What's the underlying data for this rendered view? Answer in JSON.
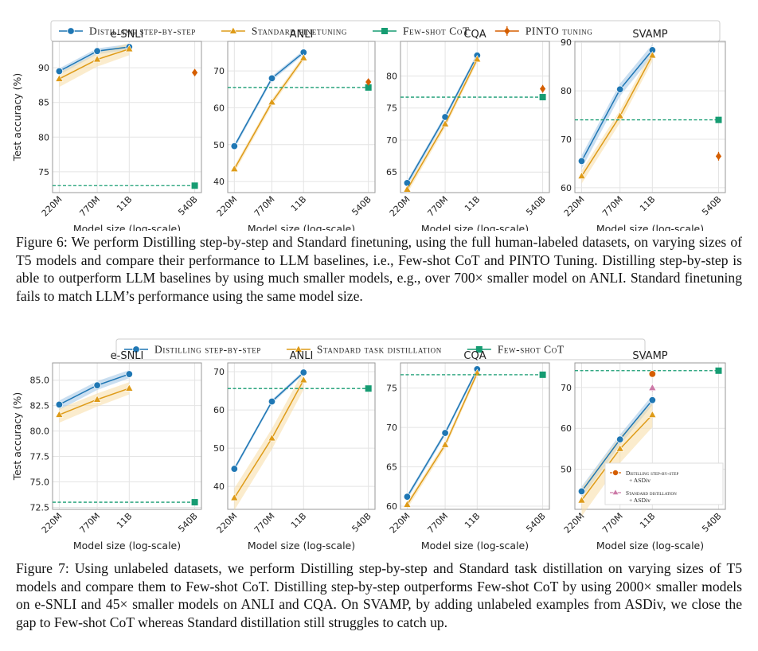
{
  "colors": {
    "distill": "#1f77b4",
    "standard": "#de9b18",
    "fewshot": "#169c72",
    "pinto": "#d55e00",
    "distill_asdiv": "#d55e00",
    "standard_asdiv": "#cc79a7",
    "distill_band": "#9ec4e6",
    "standard_band": "#f7dca4",
    "grid": "#e4e4e4",
    "axis": "#9a9a9a",
    "text": "#222222"
  },
  "figures": [
    {
      "id": "fig6",
      "legend": [
        {
          "series": "distill",
          "label": "Distilling step-by-step"
        },
        {
          "series": "standard",
          "label": "Standard finetuning"
        },
        {
          "series": "fewshot",
          "label": "Few-shot CoT"
        },
        {
          "series": "pinto",
          "label": "PINTO tuning"
        }
      ],
      "caption": {
        "label": "Figure 6:",
        "text": "We perform Distilling step-by-step and Standard finetuning, using the full human-labeled datasets, on varying sizes of T5 models and compare their performance to LLM baselines, i.e., Few-shot CoT and PINTO Tuning. Distilling step-by-step is able to outperform LLM baselines by using much smaller models, e.g., over 700× smaller model on ANLI. Standard finetuning fails to match LLM’s performance using the same model size."
      },
      "chart_data": [
        {
          "type": "line",
          "title": "e-SNLI",
          "xlabel": "Model size (log-scale)",
          "ylabel": "Test accuracy (%)",
          "x": [
            "220M",
            "770M",
            "11B",
            "540B"
          ],
          "ylim": [
            72,
            93.8
          ],
          "yticks": [
            75,
            80,
            85,
            90
          ],
          "grid": true,
          "series": [
            {
              "key": "distill",
              "values": [
                89.5,
                92.4,
                93.0,
                null
              ],
              "band": 0.4
            },
            {
              "key": "standard",
              "values": [
                88.4,
                91.2,
                92.7,
                null
              ],
              "band": 0.9
            },
            {
              "key": "fewshot",
              "values": [
                null,
                null,
                null,
                73.0
              ],
              "hline": true
            },
            {
              "key": "pinto",
              "values": [
                null,
                null,
                null,
                89.3
              ],
              "err": 0.5
            }
          ]
        },
        {
          "type": "line",
          "title": "ANLI",
          "xlabel": "Model size (log-scale)",
          "ylabel": "",
          "x": [
            "220M",
            "770M",
            "11B",
            "540B"
          ],
          "ylim": [
            37,
            78
          ],
          "yticks": [
            40,
            50,
            60,
            70
          ],
          "grid": true,
          "series": [
            {
              "key": "distill",
              "values": [
                49.6,
                68.0,
                75.0,
                null
              ],
              "band": 0.6
            },
            {
              "key": "standard",
              "values": [
                43.4,
                61.5,
                73.5,
                null
              ],
              "band": 0.8
            },
            {
              "key": "fewshot",
              "values": [
                null,
                null,
                null,
                65.5
              ],
              "hline": true
            },
            {
              "key": "pinto",
              "values": [
                null,
                null,
                null,
                67.0
              ],
              "err": 0.8
            }
          ]
        },
        {
          "type": "line",
          "title": "CQA",
          "xlabel": "Model size (log-scale)",
          "ylabel": "",
          "x": [
            "220M",
            "770M",
            "11B",
            "540B"
          ],
          "ylim": [
            61.8,
            85.4
          ],
          "yticks": [
            65,
            70,
            75,
            80
          ],
          "grid": true,
          "series": [
            {
              "key": "distill",
              "values": [
                63.3,
                73.6,
                83.2,
                null
              ],
              "band": 0.4
            },
            {
              "key": "standard",
              "values": [
                62.3,
                72.5,
                82.6,
                null
              ],
              "band": 0.5
            },
            {
              "key": "fewshot",
              "values": [
                null,
                null,
                null,
                76.7
              ],
              "hline": true
            },
            {
              "key": "pinto",
              "values": [
                null,
                null,
                null,
                78.0
              ],
              "err": 0.6
            }
          ]
        },
        {
          "type": "line",
          "title": "SVAMP",
          "xlabel": "Model size (log-scale)",
          "ylabel": "",
          "x": [
            "220M",
            "770M",
            "11B",
            "540B"
          ],
          "ylim": [
            59,
            90.2
          ],
          "yticks": [
            60,
            70,
            80,
            90
          ],
          "grid": true,
          "series": [
            {
              "key": "distill",
              "values": [
                65.5,
                80.3,
                88.4,
                null
              ],
              "band": 1.2
            },
            {
              "key": "standard",
              "values": [
                62.4,
                74.8,
                87.3,
                null
              ],
              "band": 1.2
            },
            {
              "key": "fewshot",
              "values": [
                null,
                null,
                null,
                74.0
              ],
              "hline": true
            },
            {
              "key": "pinto",
              "values": [
                null,
                null,
                null,
                66.5
              ],
              "err": 0.9
            }
          ]
        }
      ]
    },
    {
      "id": "fig7",
      "legend": [
        {
          "series": "distill",
          "label": "Distilling step-by-step"
        },
        {
          "series": "standard",
          "label": "Standard task distillation"
        },
        {
          "series": "fewshot",
          "label": "Few-shot CoT"
        }
      ],
      "caption": {
        "label": "Figure 7:",
        "text": "Using unlabeled datasets, we perform Distilling step-by-step and Standard task distillation on varying sizes of T5 models and compare them to Few-shot CoT. Distilling step-by-step outperforms Few-shot CoT by using 2000× smaller models on e-SNLI and 45× smaller models on ANLI and CQA. On SVAMP, by adding unlabeled examples from ASDiv, we close the gap to Few-shot CoT whereas Standard distillation still struggles to catch up."
      },
      "chart_data": [
        {
          "type": "line",
          "title": "e-SNLI",
          "xlabel": "Model size (log-scale)",
          "ylabel": "Test accuracy (%)",
          "x": [
            "220M",
            "770M",
            "11B",
            "540B"
          ],
          "ylim": [
            72.3,
            86.7
          ],
          "yticks": [
            72.5,
            75.0,
            77.5,
            80.0,
            82.5,
            85.0
          ],
          "ytick_format": "1dp",
          "grid": true,
          "series": [
            {
              "key": "distill",
              "values": [
                82.6,
                84.5,
                85.6,
                null
              ],
              "band": 0.4
            },
            {
              "key": "standard",
              "values": [
                81.6,
                83.1,
                84.2,
                null
              ],
              "band": 0.6
            },
            {
              "key": "fewshot",
              "values": [
                null,
                null,
                null,
                73.0
              ],
              "hline": true
            }
          ]
        },
        {
          "type": "line",
          "title": "ANLI",
          "xlabel": "Model size (log-scale)",
          "ylabel": "",
          "x": [
            "220M",
            "770M",
            "11B",
            "540B"
          ],
          "ylim": [
            34,
            72.3
          ],
          "yticks": [
            40,
            50,
            60,
            70
          ],
          "grid": true,
          "series": [
            {
              "key": "distill",
              "values": [
                44.6,
                62.2,
                69.8,
                null
              ],
              "band": 0.5
            },
            {
              "key": "standard",
              "values": [
                37.0,
                52.6,
                67.8,
                null
              ],
              "band": 2.5
            },
            {
              "key": "fewshot",
              "values": [
                null,
                null,
                null,
                65.6
              ],
              "hline": true
            }
          ]
        },
        {
          "type": "line",
          "title": "CQA",
          "xlabel": "Model size (log-scale)",
          "ylabel": "",
          "x": [
            "220M",
            "770M",
            "11B",
            "540B"
          ],
          "ylim": [
            59.6,
            78.2
          ],
          "yticks": [
            60,
            65,
            70,
            75
          ],
          "grid": true,
          "series": [
            {
              "key": "distill",
              "values": [
                61.2,
                69.3,
                77.4,
                null
              ],
              "band": 0.3
            },
            {
              "key": "standard",
              "values": [
                60.2,
                67.8,
                76.9,
                null
              ],
              "band": 0.4
            },
            {
              "key": "fewshot",
              "values": [
                null,
                null,
                null,
                76.7
              ],
              "hline": true
            }
          ]
        },
        {
          "type": "line",
          "title": "SVAMP",
          "xlabel": "Model size (log-scale)",
          "ylabel": "",
          "x": [
            "220M",
            "770M",
            "11B",
            "540B"
          ],
          "ylim": [
            40.2,
            76
          ],
          "yticks": [
            50,
            60,
            70
          ],
          "grid": true,
          "series": [
            {
              "key": "distill",
              "values": [
                44.6,
                57.3,
                66.9,
                null
              ],
              "band": 1.2
            },
            {
              "key": "standard",
              "values": [
                42.4,
                55.0,
                63.3,
                null
              ],
              "band": 3.0
            },
            {
              "key": "fewshot",
              "values": [
                null,
                null,
                null,
                74.1
              ],
              "hline": true
            },
            {
              "key": "distill_asdiv",
              "values": [
                null,
                null,
                73.3,
                null
              ],
              "err": 0.7
            },
            {
              "key": "standard_asdiv",
              "values": [
                null,
                null,
                69.9,
                null
              ],
              "err": 0.8
            }
          ],
          "inset_legend": [
            {
              "series": "distill_asdiv",
              "lines": [
                "Distilling step-by-step",
                "+ ASDiv"
              ]
            },
            {
              "series": "standard_asdiv",
              "lines": [
                "Standard distillation",
                "+ ASDiv"
              ]
            }
          ]
        }
      ]
    }
  ]
}
